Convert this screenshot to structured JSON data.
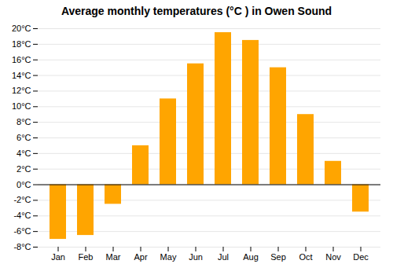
{
  "chart_data": {
    "type": "bar",
    "title": "Average monthly temperatures (°C ) in Owen Sound",
    "categories": [
      "Jan",
      "Feb",
      "Mar",
      "Apr",
      "May",
      "Jun",
      "Jul",
      "Aug",
      "Sep",
      "Oct",
      "Nov",
      "Dec"
    ],
    "values": [
      -7,
      -6.5,
      -2.5,
      5,
      11,
      15.5,
      19.5,
      18.5,
      15,
      9,
      3,
      -3.5
    ],
    "color": "#FFA500",
    "ylim": [
      -8,
      20
    ],
    "yticks": [
      {
        "value": -8,
        "label": "-8°C"
      },
      {
        "value": -6,
        "label": "-6°C"
      },
      {
        "value": -4,
        "label": "-4°C"
      },
      {
        "value": -2,
        "label": "-2°C"
      },
      {
        "value": 0,
        "label": "0°C"
      },
      {
        "value": 2,
        "label": "2°C"
      },
      {
        "value": 4,
        "label": "4°C"
      },
      {
        "value": 6,
        "label": "6°C"
      },
      {
        "value": 8,
        "label": "8°C"
      },
      {
        "value": 10,
        "label": "10°C"
      },
      {
        "value": 12,
        "label": "12°C"
      },
      {
        "value": 14,
        "label": "14°C"
      },
      {
        "value": 16,
        "label": "16°C"
      },
      {
        "value": 18,
        "label": "18°C"
      },
      {
        "value": 20,
        "label": "20°C"
      }
    ],
    "grid": true
  }
}
